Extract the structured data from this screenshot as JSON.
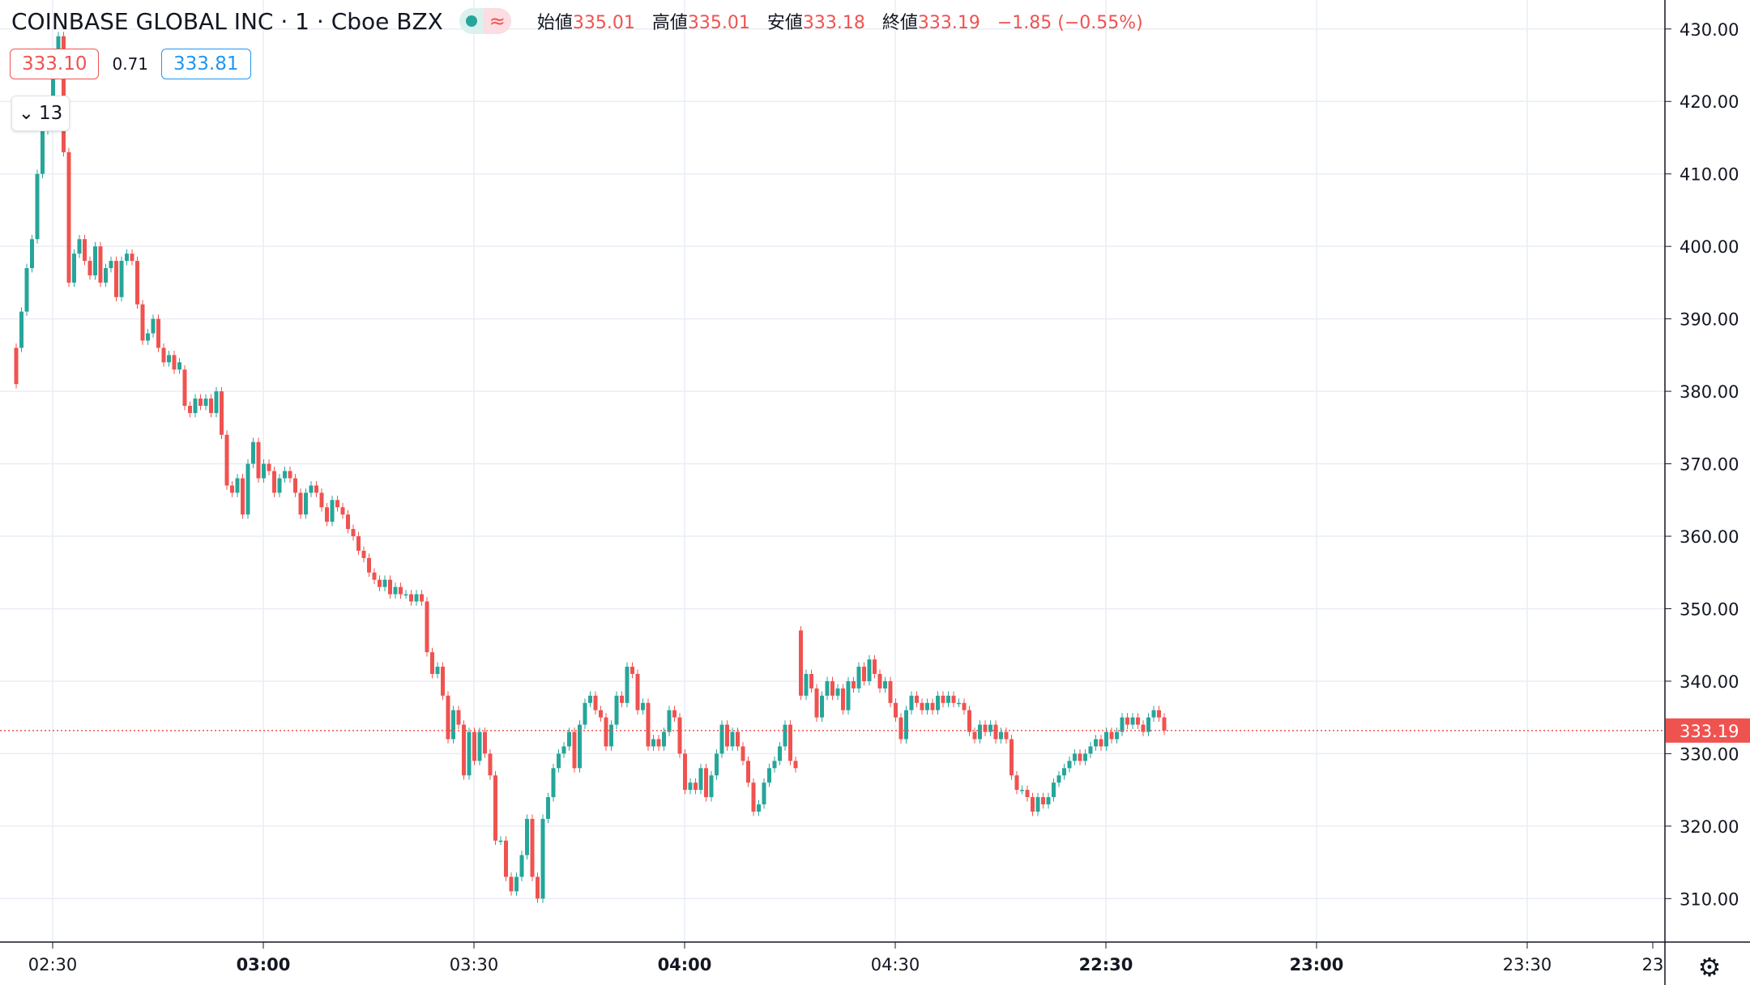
{
  "header": {
    "symbol": "COINBASE GLOBAL INC · 1 · Cboe BZX",
    "open_label": "始値",
    "open": "335.01",
    "high_label": "高値",
    "high": "335.01",
    "low_label": "安値",
    "low": "333.18",
    "close_label": "終値",
    "close": "333.19",
    "change": "−1.85 (−0.55%)"
  },
  "trade": {
    "sell": "333.10",
    "spread": "0.71",
    "buy": "333.81"
  },
  "collapse": {
    "count": "13"
  },
  "icons": {
    "collapse": "chevron-down-icon",
    "settings": "gear-icon",
    "status": "market-status-dot-icon",
    "wave": "approx-wave-icon"
  },
  "colors": {
    "up": "#26a69a",
    "down": "#ef5350",
    "grid": "#e9eef5",
    "text": "#131722",
    "last_price": "#ef5350"
  },
  "chart_data": {
    "type": "candlestick",
    "title": "COINBASE GLOBAL INC · 1 · Cboe BZX",
    "y_ticks": [
      "430.00",
      "420.00",
      "410.00",
      "400.00",
      "390.00",
      "380.00",
      "370.00",
      "360.00",
      "350.00",
      "340.00",
      "330.00",
      "320.00",
      "310.00"
    ],
    "x_tick_labels": [
      "02:30",
      "03:00",
      "03:30",
      "04:00",
      "04:30",
      "22:30",
      "23:00",
      "23:30",
      "23"
    ],
    "ylim": [
      304,
      434
    ],
    "last_price": 333.19,
    "last_price_label": "333.19",
    "candles": [
      [
        386,
        381,
        386,
        381
      ],
      [
        386,
        391,
        386,
        391
      ],
      [
        391,
        397,
        391,
        397
      ],
      [
        397,
        401,
        397,
        401
      ],
      [
        401,
        410,
        401,
        410
      ],
      [
        410,
        416,
        410,
        416
      ],
      [
        416,
        420,
        416,
        420
      ],
      [
        420,
        425,
        420,
        425
      ],
      [
        425,
        429,
        425,
        429
      ],
      [
        429,
        413,
        429,
        413
      ],
      [
        413,
        395,
        413,
        395
      ],
      [
        395,
        399,
        395,
        399
      ],
      [
        399,
        401,
        399,
        401
      ],
      [
        401,
        398,
        401,
        398
      ],
      [
        398,
        396,
        398,
        396
      ],
      [
        396,
        400,
        396,
        400
      ],
      [
        400,
        395,
        400,
        395
      ],
      [
        395,
        397,
        395,
        397
      ],
      [
        397,
        398,
        397,
        398
      ],
      [
        398,
        393,
        398,
        393
      ],
      [
        393,
        398,
        393,
        398
      ],
      [
        398,
        399,
        398,
        399
      ],
      [
        399,
        398,
        399,
        398
      ],
      [
        398,
        392,
        398,
        392
      ],
      [
        392,
        387,
        392,
        387
      ],
      [
        387,
        388,
        387,
        388
      ],
      [
        388,
        390,
        388,
        390
      ],
      [
        390,
        386,
        390,
        386
      ],
      [
        386,
        384,
        386,
        384
      ],
      [
        384,
        385,
        384,
        385
      ],
      [
        385,
        383,
        385,
        383
      ],
      [
        383,
        384,
        384,
        383
      ],
      [
        383,
        378,
        383,
        378
      ],
      [
        378,
        377,
        378,
        377
      ],
      [
        377,
        379,
        377,
        379
      ],
      [
        379,
        378,
        379,
        378
      ],
      [
        378,
        379,
        378,
        379
      ],
      [
        379,
        377,
        379,
        377
      ],
      [
        377,
        380,
        377,
        380
      ],
      [
        380,
        374,
        380,
        374
      ],
      [
        374,
        367,
        374,
        367
      ],
      [
        367,
        366,
        367,
        366
      ],
      [
        366,
        368,
        366,
        368
      ],
      [
        368,
        363,
        368,
        363
      ],
      [
        363,
        370,
        363,
        370
      ],
      [
        370,
        373,
        370,
        373
      ],
      [
        373,
        368,
        373,
        368
      ],
      [
        368,
        370,
        368,
        370
      ],
      [
        370,
        369,
        370,
        369
      ],
      [
        369,
        366,
        369,
        366
      ],
      [
        366,
        368,
        366,
        368
      ],
      [
        368,
        369,
        368,
        369
      ],
      [
        369,
        368,
        369,
        368
      ],
      [
        368,
        366,
        368,
        366
      ],
      [
        366,
        363,
        366,
        363
      ],
      [
        363,
        366,
        363,
        366
      ],
      [
        366,
        367,
        366,
        367
      ],
      [
        367,
        366,
        367,
        366
      ],
      [
        366,
        364,
        366,
        364
      ],
      [
        364,
        362,
        364,
        362
      ],
      [
        362,
        365,
        362,
        365
      ],
      [
        365,
        364,
        365,
        364
      ],
      [
        364,
        363,
        364,
        363
      ],
      [
        363,
        361,
        363,
        361
      ],
      [
        361,
        360,
        361,
        360
      ],
      [
        360,
        358,
        360,
        358
      ],
      [
        358,
        357,
        358,
        357
      ],
      [
        357,
        355,
        357,
        355
      ],
      [
        355,
        354,
        355,
        354
      ],
      [
        354,
        353,
        354,
        353
      ],
      [
        353,
        354,
        353,
        354
      ],
      [
        354,
        352,
        354,
        352
      ],
      [
        352,
        353,
        352,
        353
      ],
      [
        353,
        352,
        353,
        352
      ],
      [
        352,
        352,
        352,
        352
      ],
      [
        352,
        351,
        352,
        351
      ],
      [
        351,
        352,
        351,
        352
      ],
      [
        352,
        351,
        352,
        351
      ],
      [
        351,
        344,
        351,
        344
      ],
      [
        344,
        341,
        344,
        341
      ],
      [
        341,
        342,
        341,
        342
      ],
      [
        342,
        338,
        342,
        338
      ],
      [
        338,
        332,
        338,
        332
      ],
      [
        332,
        336,
        332,
        336
      ],
      [
        336,
        334,
        336,
        334
      ],
      [
        334,
        327,
        334,
        327
      ],
      [
        327,
        333,
        327,
        333
      ],
      [
        333,
        329,
        333,
        329
      ],
      [
        329,
        333,
        329,
        333
      ],
      [
        333,
        330,
        333,
        330
      ],
      [
        330,
        327,
        330,
        327
      ],
      [
        327,
        318,
        327,
        318
      ],
      [
        318,
        318,
        318,
        318
      ],
      [
        318,
        313,
        318,
        313
      ],
      [
        313,
        311,
        313,
        311
      ],
      [
        311,
        313,
        311,
        313
      ],
      [
        313,
        316,
        313,
        316
      ],
      [
        316,
        321,
        316,
        321
      ],
      [
        321,
        313,
        321,
        313
      ],
      [
        313,
        310,
        313,
        310
      ],
      [
        310,
        321,
        310,
        321
      ],
      [
        321,
        324,
        321,
        324
      ],
      [
        324,
        328,
        324,
        328
      ],
      [
        328,
        330,
        328,
        330
      ],
      [
        330,
        331,
        330,
        331
      ],
      [
        331,
        333,
        331,
        333
      ],
      [
        333,
        328,
        333,
        328
      ],
      [
        328,
        334,
        328,
        334
      ],
      [
        334,
        337,
        334,
        337
      ],
      [
        337,
        338,
        337,
        338
      ],
      [
        338,
        336,
        338,
        336
      ],
      [
        336,
        335,
        336,
        335
      ],
      [
        335,
        331,
        335,
        331
      ],
      [
        331,
        334,
        331,
        334
      ],
      [
        334,
        338,
        334,
        338
      ],
      [
        338,
        337,
        338,
        337
      ],
      [
        337,
        342,
        337,
        342
      ],
      [
        342,
        341,
        342,
        341
      ],
      [
        341,
        336,
        341,
        336
      ],
      [
        336,
        337,
        336,
        337
      ],
      [
        337,
        331,
        337,
        331
      ],
      [
        331,
        332,
        331,
        332
      ],
      [
        332,
        331,
        332,
        331
      ],
      [
        331,
        333,
        331,
        333
      ],
      [
        333,
        336,
        333,
        336
      ],
      [
        336,
        335,
        336,
        335
      ],
      [
        335,
        330,
        335,
        330
      ],
      [
        330,
        325,
        330,
        325
      ],
      [
        325,
        326,
        325,
        326
      ],
      [
        326,
        325,
        326,
        325
      ],
      [
        325,
        328,
        325,
        328
      ],
      [
        328,
        324,
        328,
        324
      ],
      [
        324,
        327,
        324,
        327
      ],
      [
        327,
        330,
        327,
        330
      ],
      [
        330,
        334,
        330,
        334
      ],
      [
        334,
        331,
        334,
        331
      ],
      [
        331,
        333,
        331,
        333
      ],
      [
        333,
        331,
        333,
        331
      ],
      [
        331,
        329,
        331,
        329
      ],
      [
        329,
        326,
        329,
        326
      ],
      [
        326,
        322,
        326,
        322
      ],
      [
        322,
        323,
        322,
        323
      ],
      [
        323,
        326,
        323,
        326
      ],
      [
        326,
        328,
        326,
        328
      ],
      [
        328,
        329,
        328,
        329
      ],
      [
        329,
        331,
        329,
        331
      ],
      [
        331,
        334,
        331,
        334
      ],
      [
        334,
        329,
        334,
        329
      ],
      [
        329,
        328,
        329,
        328
      ],
      [
        347,
        338,
        347,
        338
      ],
      [
        338,
        341,
        338,
        341
      ],
      [
        341,
        339,
        341,
        339
      ],
      [
        339,
        335,
        339,
        335
      ],
      [
        335,
        338,
        335,
        338
      ],
      [
        338,
        340,
        338,
        340
      ],
      [
        340,
        338,
        340,
        338
      ],
      [
        338,
        339,
        338,
        339
      ],
      [
        339,
        336,
        339,
        336
      ],
      [
        336,
        340,
        336,
        340
      ],
      [
        340,
        339,
        340,
        339
      ],
      [
        339,
        342,
        339,
        342
      ],
      [
        342,
        340,
        342,
        340
      ],
      [
        340,
        343,
        340,
        343
      ],
      [
        343,
        341,
        343,
        341
      ],
      [
        341,
        339,
        341,
        339
      ],
      [
        339,
        340,
        339,
        340
      ],
      [
        340,
        337,
        340,
        337
      ],
      [
        337,
        335,
        337,
        335
      ],
      [
        335,
        332,
        335,
        332
      ],
      [
        332,
        336,
        332,
        336
      ],
      [
        336,
        338,
        336,
        338
      ],
      [
        338,
        337,
        338,
        337
      ],
      [
        337,
        336,
        337,
        336
      ],
      [
        336,
        337,
        336,
        337
      ],
      [
        337,
        336,
        337,
        336
      ],
      [
        336,
        338,
        336,
        338
      ],
      [
        338,
        337,
        338,
        337
      ],
      [
        337,
        338,
        337,
        338
      ],
      [
        338,
        337,
        338,
        337
      ],
      [
        337,
        337,
        337,
        337
      ],
      [
        337,
        336,
        337,
        336
      ],
      [
        336,
        333,
        336,
        333
      ],
      [
        333,
        332,
        333,
        332
      ],
      [
        332,
        334,
        332,
        334
      ],
      [
        334,
        333,
        334,
        333
      ],
      [
        333,
        334,
        333,
        334
      ],
      [
        334,
        332,
        334,
        332
      ],
      [
        332,
        333,
        332,
        333
      ],
      [
        333,
        332,
        333,
        332
      ],
      [
        332,
        327,
        332,
        327
      ],
      [
        327,
        325,
        327,
        325
      ],
      [
        325,
        325,
        325,
        325
      ],
      [
        325,
        324,
        325,
        324
      ],
      [
        324,
        322,
        324,
        322
      ],
      [
        322,
        324,
        322,
        324
      ],
      [
        324,
        323,
        324,
        323
      ],
      [
        323,
        324,
        323,
        324
      ],
      [
        324,
        326,
        324,
        326
      ],
      [
        326,
        327,
        326,
        327
      ],
      [
        327,
        328,
        327,
        328
      ],
      [
        328,
        329,
        328,
        329
      ],
      [
        329,
        330,
        329,
        330
      ],
      [
        330,
        329,
        330,
        329
      ],
      [
        329,
        330,
        329,
        330
      ],
      [
        330,
        331,
        330,
        331
      ],
      [
        331,
        332,
        331,
        332
      ],
      [
        332,
        331,
        332,
        331
      ],
      [
        331,
        333,
        331,
        333
      ],
      [
        333,
        332,
        333,
        332
      ],
      [
        332,
        333,
        332,
        333
      ],
      [
        333,
        335,
        333,
        335
      ],
      [
        335,
        334,
        335,
        334
      ],
      [
        334,
        335,
        334,
        335
      ],
      [
        335,
        334,
        335,
        334
      ],
      [
        334,
        333,
        334,
        333
      ],
      [
        333,
        335,
        333,
        335
      ],
      [
        335,
        336,
        335,
        336
      ],
      [
        336,
        335,
        336,
        335
      ],
      [
        335,
        333.19,
        335.01,
        333.18
      ]
    ]
  }
}
